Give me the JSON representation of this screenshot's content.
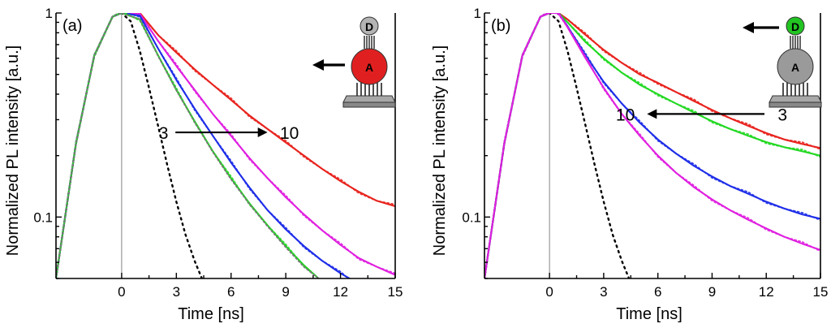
{
  "chart_data": [
    {
      "type": "line",
      "panel_label": "(a)",
      "xlabel": "Time [ns]",
      "ylabel": "Normalized PL intensity [a.u.]",
      "xlim": [
        -3.6,
        15
      ],
      "ylim": [
        0.05,
        1.0
      ],
      "y_scale": "log",
      "x_ticks": [
        0,
        3,
        6,
        9,
        12,
        15
      ],
      "x_tick_labels": [
        "0",
        "3",
        "6",
        "9",
        "12",
        "15"
      ],
      "y_ticks": [
        0.1,
        1
      ],
      "y_tick_labels": [
        "0.1",
        "1"
      ],
      "annotation": {
        "start_label": "3",
        "end_label": "10",
        "arrow_direction": "right",
        "y": 0.26,
        "x_from": 9.5,
        "x_to": 16.5
      },
      "schematic": {
        "top_label": "D",
        "bottom_label": "A",
        "highlighted": "A",
        "highlight_color": "#e02020",
        "arrow_direction": "left"
      },
      "series": [
        {
          "color": "#000000",
          "style": "dotted",
          "role": "irf",
          "x": [
            -3.6,
            -2.5,
            -1.5,
            -0.5,
            0,
            0.5,
            1,
            1.5,
            2,
            2.5,
            3,
            3.5,
            4,
            4.4
          ],
          "y": [
            0.05,
            0.23,
            0.62,
            0.96,
            1.0,
            0.91,
            0.65,
            0.43,
            0.28,
            0.18,
            0.119,
            0.082,
            0.061,
            0.05
          ]
        },
        {
          "color": "#e8231e",
          "style": "solid",
          "x": [
            -3.6,
            -2.5,
            -1.5,
            -0.5,
            0,
            1,
            2,
            3,
            4,
            5,
            6,
            7,
            8,
            9,
            10,
            11,
            12,
            13,
            14,
            15
          ],
          "y": [
            0.05,
            0.23,
            0.62,
            0.96,
            1.0,
            1.0,
            0.78,
            0.64,
            0.53,
            0.445,
            0.375,
            0.315,
            0.27,
            0.232,
            0.2,
            0.172,
            0.15,
            0.133,
            0.12,
            0.113
          ]
        },
        {
          "color": "#e020e0",
          "style": "solid",
          "x": [
            -3.6,
            -2.5,
            -1.5,
            -0.5,
            0,
            1,
            2,
            3,
            4,
            5,
            6,
            7,
            8,
            9,
            10,
            11,
            12,
            13,
            14,
            15
          ],
          "y": [
            0.05,
            0.23,
            0.62,
            0.96,
            1.0,
            0.99,
            0.73,
            0.55,
            0.42,
            0.32,
            0.25,
            0.195,
            0.155,
            0.125,
            0.103,
            0.086,
            0.073,
            0.063,
            0.057,
            0.052
          ]
        },
        {
          "color": "#1e2ee8",
          "style": "solid",
          "x": [
            -3.6,
            -2.5,
            -1.5,
            -0.5,
            0,
            1,
            2,
            3,
            4,
            5,
            6,
            7,
            8,
            9,
            10,
            11,
            12,
            12.5
          ],
          "y": [
            0.05,
            0.23,
            0.62,
            0.96,
            1.0,
            0.97,
            0.67,
            0.47,
            0.34,
            0.25,
            0.185,
            0.14,
            0.108,
            0.087,
            0.072,
            0.061,
            0.053,
            0.05
          ]
        },
        {
          "color": "#22d822",
          "style": "solid",
          "x": [
            -3.6,
            -2.5,
            -1.5,
            -0.5,
            0,
            1,
            2,
            3,
            4,
            5,
            6,
            7,
            8,
            9,
            10,
            10.8
          ],
          "y": [
            0.05,
            0.23,
            0.62,
            0.96,
            1.0,
            0.93,
            0.62,
            0.42,
            0.295,
            0.21,
            0.155,
            0.117,
            0.091,
            0.072,
            0.058,
            0.05
          ]
        },
        {
          "color": "#777777",
          "style": "dotted",
          "x": [
            -3.6,
            -2.5,
            -1.5,
            -0.5,
            0,
            1,
            2,
            3,
            4,
            5,
            6,
            7,
            8,
            9,
            10,
            10.8
          ],
          "y": [
            0.05,
            0.23,
            0.62,
            0.96,
            1.0,
            0.93,
            0.615,
            0.418,
            0.292,
            0.208,
            0.153,
            0.116,
            0.09,
            0.071,
            0.057,
            0.05
          ]
        }
      ]
    },
    {
      "type": "line",
      "panel_label": "(b)",
      "xlabel": "Time [ns]",
      "ylabel": "Normalized PL intensity [a.u.]",
      "xlim": [
        -3.6,
        15
      ],
      "ylim": [
        0.05,
        1.0
      ],
      "y_scale": "log",
      "x_ticks": [
        0,
        3,
        6,
        9,
        12,
        15
      ],
      "x_tick_labels": [
        "0",
        "3",
        "6",
        "9",
        "12",
        "15"
      ],
      "y_ticks": [
        0.1,
        1
      ],
      "y_tick_labels": [
        "0.1",
        "1"
      ],
      "annotation": {
        "start_label": "3",
        "end_label": "10",
        "arrow_direction": "left",
        "y": 0.32,
        "x_from": 12.2,
        "x_to": 4.8
      },
      "schematic": {
        "top_label": "D",
        "bottom_label": "A",
        "highlighted": "D",
        "highlight_color": "#22c422",
        "arrow_direction": "left"
      },
      "series": [
        {
          "color": "#000000",
          "style": "dotted",
          "role": "irf",
          "x": [
            -3.6,
            -2.5,
            -1.5,
            -0.5,
            0,
            0.5,
            1,
            1.5,
            2,
            2.5,
            3,
            3.5,
            4,
            4.4
          ],
          "y": [
            0.05,
            0.23,
            0.62,
            0.96,
            1.0,
            0.91,
            0.65,
            0.43,
            0.28,
            0.18,
            0.119,
            0.082,
            0.061,
            0.05
          ]
        },
        {
          "color": "#e8231e",
          "style": "solid",
          "x": [
            -3.6,
            -2.5,
            -1.5,
            -0.5,
            0,
            0.5,
            1,
            2,
            3,
            4,
            5,
            6,
            7,
            8,
            9,
            10,
            11,
            12,
            13,
            14,
            15
          ],
          "y": [
            0.05,
            0.23,
            0.62,
            0.96,
            1.0,
            1.0,
            0.93,
            0.78,
            0.66,
            0.57,
            0.5,
            0.455,
            0.41,
            0.37,
            0.335,
            0.305,
            0.28,
            0.258,
            0.24,
            0.228,
            0.218
          ]
        },
        {
          "color": "#22d822",
          "style": "solid",
          "x": [
            -3.6,
            -2.5,
            -1.5,
            -0.5,
            0,
            0.5,
            1,
            2,
            3,
            4,
            5,
            6,
            7,
            8,
            9,
            10,
            11,
            12,
            13,
            14,
            15
          ],
          "y": [
            0.05,
            0.23,
            0.62,
            0.96,
            1.0,
            1.0,
            0.9,
            0.72,
            0.6,
            0.51,
            0.445,
            0.4,
            0.36,
            0.325,
            0.295,
            0.27,
            0.25,
            0.233,
            0.22,
            0.21,
            0.2
          ]
        },
        {
          "color": "#1e2ee8",
          "style": "solid",
          "x": [
            -3.6,
            -2.5,
            -1.5,
            -0.5,
            0,
            0.5,
            1,
            2,
            3,
            4,
            5,
            6,
            7,
            8,
            9,
            10,
            11,
            12,
            13,
            14,
            15
          ],
          "y": [
            0.05,
            0.23,
            0.62,
            0.96,
            1.0,
            1.0,
            0.86,
            0.62,
            0.46,
            0.36,
            0.29,
            0.24,
            0.205,
            0.178,
            0.158,
            0.142,
            0.13,
            0.119,
            0.11,
            0.103,
            0.098
          ]
        },
        {
          "color": "#e020e0",
          "style": "solid",
          "x": [
            -3.6,
            -2.5,
            -1.5,
            -0.5,
            0,
            0.5,
            1,
            2,
            3,
            4,
            5,
            6,
            7,
            8,
            9,
            10,
            11,
            12,
            13,
            14,
            15
          ],
          "y": [
            0.05,
            0.23,
            0.62,
            0.96,
            1.0,
            1.0,
            0.85,
            0.6,
            0.43,
            0.32,
            0.25,
            0.2,
            0.165,
            0.14,
            0.122,
            0.108,
            0.097,
            0.088,
            0.08,
            0.074,
            0.069
          ]
        }
      ]
    }
  ]
}
